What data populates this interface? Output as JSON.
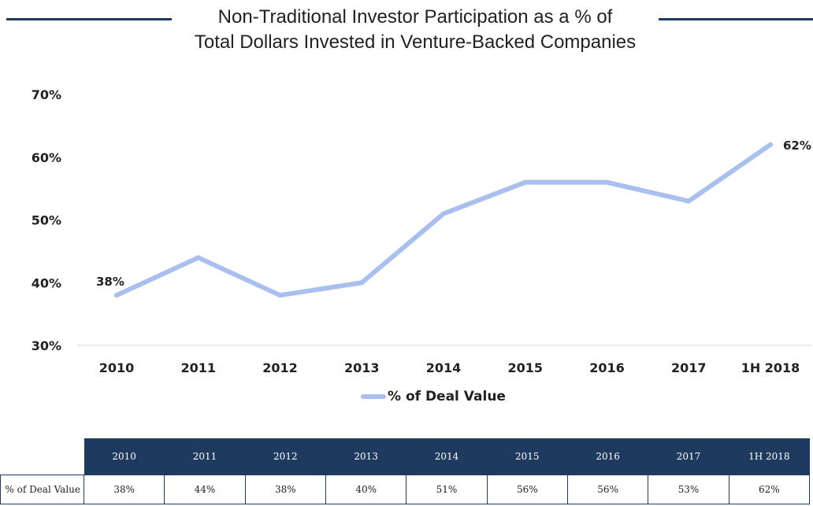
{
  "title_line1": "Non-Traditional Investor Participation as a % of",
  "title_line2": "Total Dollars Invested in Venture-Backed Companies",
  "colors": {
    "line": "#a9bff0",
    "header": "#1f3a5f",
    "accent_rule": "#1f3a5f"
  },
  "chart_data": {
    "type": "line",
    "categories": [
      "2010",
      "2011",
      "2012",
      "2013",
      "2014",
      "2015",
      "2016",
      "2017",
      "1H 2018"
    ],
    "series": [
      {
        "name": "% of Deal Value",
        "values": [
          38,
          44,
          38,
          40,
          51,
          56,
          56,
          53,
          62
        ]
      }
    ],
    "ylim": [
      30,
      70
    ],
    "yticks": [
      "30%",
      "40%",
      "50%",
      "60%",
      "70%"
    ],
    "data_labels": {
      "first": "38%",
      "last": "62%"
    },
    "grid": false,
    "legend_position": "bottom"
  },
  "legend_label": "% of Deal Value",
  "table": {
    "row_label": "% of Deal Value",
    "headers": [
      "2010",
      "2011",
      "2012",
      "2013",
      "2014",
      "2015",
      "2016",
      "2017",
      "1H 2018"
    ],
    "values": [
      "38%",
      "44%",
      "38%",
      "40%",
      "51%",
      "56%",
      "56%",
      "53%",
      "62%"
    ]
  }
}
